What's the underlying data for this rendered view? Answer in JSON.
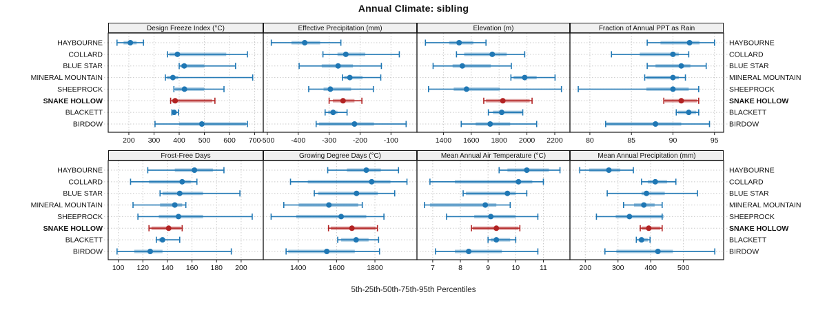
{
  "title": "Annual Climate: sibling",
  "footer": "5th-25th-50th-75th-95th Percentiles",
  "highlight_location": "SNAKE HOLLOW",
  "colors": {
    "series": "#1f77b4",
    "highlight": "#b22222",
    "strip_bg": "#f0f0f0",
    "grid": "#c9c9c9",
    "border": "#1a1a1a",
    "text": "#111111"
  },
  "locations": [
    "HAYBOURNE",
    "COLLARD",
    "BLUE STAR",
    "MINERAL MOUNTAIN",
    "SHEEPROCK",
    "SNAKE HOLLOW",
    "BLACKETT",
    "BIRDOW"
  ],
  "chart_data": {
    "type": "dot-interval",
    "title": "Annual Climate: sibling",
    "xlabel": "5th-25th-50th-75th-95th Percentiles",
    "legend_position": "none",
    "grid": "dotted",
    "percentile_levels": [
      5,
      25,
      50,
      75,
      95
    ],
    "categories": [
      "HAYBOURNE",
      "COLLARD",
      "BLUE STAR",
      "MINERAL MOUNTAIN",
      "SHEEPROCK",
      "SNAKE HOLLOW",
      "BLACKETT",
      "BIRDOW"
    ],
    "panels": [
      {
        "title": "Design Freeze Index (°C)",
        "xlim": [
          118,
          734
        ],
        "ticks": [
          200,
          300,
          400,
          500,
          600,
          700
        ],
        "series": [
          [
            153,
            179,
            206,
            231,
            258
          ],
          [
            354,
            361,
            393,
            587,
            671
          ],
          [
            400,
            406,
            420,
            500,
            624
          ],
          [
            345,
            352,
            375,
            396,
            692
          ],
          [
            379,
            384,
            421,
            500,
            578
          ],
          [
            366,
            371,
            384,
            531,
            542
          ],
          [
            371,
            373,
            380,
            386,
            397
          ],
          [
            304,
            400,
            490,
            665,
            671
          ]
        ]
      },
      {
        "title": "Effective Precipitation (mm)",
        "xlim": [
          -513,
          -16
        ],
        "ticks": [
          -500,
          -400,
          -300,
          -200,
          -100
        ],
        "series": [
          [
            -487,
            -422,
            -379,
            -329,
            -262
          ],
          [
            -320,
            -273,
            -246,
            -183,
            -73
          ],
          [
            -397,
            -324,
            -271,
            -223,
            -131
          ],
          [
            -257,
            -251,
            -233,
            -192,
            -133
          ],
          [
            -366,
            -318,
            -296,
            -229,
            -157
          ],
          [
            -300,
            -288,
            -255,
            -218,
            -194
          ],
          [
            -313,
            -303,
            -287,
            -273,
            -242
          ],
          [
            -342,
            -333,
            -218,
            -155,
            -51
          ]
        ]
      },
      {
        "title": "Elevation (m)",
        "xlim": [
          1210,
          2309
        ],
        "ticks": [
          1400,
          1600,
          1800,
          2000,
          2200
        ],
        "series": [
          [
            1271,
            1442,
            1513,
            1615,
            1706
          ],
          [
            1494,
            1549,
            1751,
            1855,
            1984
          ],
          [
            1326,
            1466,
            1536,
            1741,
            1888
          ],
          [
            1885,
            1904,
            1984,
            2070,
            2202
          ],
          [
            1293,
            1474,
            1566,
            1805,
            2248
          ],
          [
            1690,
            1706,
            1827,
            2020,
            2037
          ],
          [
            1723,
            1756,
            1819,
            1962,
            1970
          ],
          [
            1528,
            1632,
            1736,
            1880,
            2070
          ]
        ]
      },
      {
        "title": "Fraction of Annual PPT as Rain",
        "xlim": [
          77.6,
          96.1
        ],
        "ticks": [
          80,
          85,
          90,
          95
        ],
        "series": [
          [
            86.9,
            88.5,
            92.0,
            93.2,
            95.0
          ],
          [
            82.6,
            86.0,
            90.0,
            90.7,
            91.9
          ],
          [
            86.9,
            87.9,
            91.0,
            92.1,
            94.0
          ],
          [
            86.6,
            86.8,
            90.0,
            90.7,
            91.5
          ],
          [
            78.6,
            86.8,
            90.0,
            91.9,
            93.1
          ],
          [
            88.9,
            89.0,
            91.0,
            92.9,
            93.1
          ],
          [
            90.4,
            90.6,
            91.9,
            92.8,
            93.1
          ],
          [
            81.9,
            82.0,
            87.9,
            91.0,
            94.4
          ]
        ]
      },
      {
        "title": "Frost-Free Days",
        "xlim": [
          91.8,
          218
        ],
        "ticks": [
          100,
          120,
          140,
          160,
          180,
          200
        ],
        "series": [
          [
            124,
            146,
            162,
            177,
            186
          ],
          [
            110,
            125,
            152,
            159,
            164
          ],
          [
            134,
            136,
            150,
            169,
            199
          ],
          [
            112,
            134,
            146,
            152,
            155
          ],
          [
            116,
            133,
            149,
            169,
            209
          ],
          [
            125,
            127,
            141,
            151,
            152
          ],
          [
            131,
            133,
            136,
            138,
            150
          ],
          [
            99,
            113,
            126,
            136,
            192
          ]
        ]
      },
      {
        "title": "Growing Degree Days (°C)",
        "xlim": [
          1218,
          2019
        ],
        "ticks": [
          1400,
          1600,
          1800
        ],
        "series": [
          [
            1554,
            1654,
            1755,
            1831,
            1923
          ],
          [
            1360,
            1450,
            1783,
            1881,
            1967
          ],
          [
            1484,
            1504,
            1704,
            1815,
            1903
          ],
          [
            1325,
            1402,
            1560,
            1713,
            1734
          ],
          [
            1259,
            1390,
            1624,
            1755,
            1847
          ],
          [
            1558,
            1570,
            1680,
            1803,
            1813
          ],
          [
            1606,
            1624,
            1702,
            1767,
            1819
          ],
          [
            1337,
            1348,
            1549,
            1695,
            1824
          ]
        ]
      },
      {
        "title": "Mean Annual Air Temperature (°C)",
        "xlim": [
          6.43,
          11.96
        ],
        "ticks": [
          7,
          8,
          9,
          10,
          11
        ],
        "series": [
          [
            9.4,
            9.7,
            10.4,
            11.2,
            11.6
          ],
          [
            6.9,
            7.8,
            10.1,
            10.6,
            11.0
          ],
          [
            8.1,
            8.2,
            9.7,
            10.0,
            10.4
          ],
          [
            6.7,
            6.9,
            8.9,
            9.3,
            9.8
          ],
          [
            7.5,
            8.5,
            9.1,
            10.0,
            10.8
          ],
          [
            8.4,
            8.45,
            9.3,
            10.1,
            10.15
          ],
          [
            9.0,
            9.1,
            9.3,
            9.8,
            10.0
          ],
          [
            7.1,
            7.8,
            8.3,
            9.5,
            10.8
          ]
        ]
      },
      {
        "title": "Mean Annual Precipitation (mm)",
        "xlim": [
          153,
          623
        ],
        "ticks": [
          200,
          300,
          400,
          500
        ],
        "series": [
          [
            183,
            212,
            272,
            307,
            347
          ],
          [
            372,
            391,
            414,
            450,
            477
          ],
          [
            267,
            372,
            387,
            443,
            543
          ],
          [
            317,
            349,
            379,
            412,
            435
          ],
          [
            234,
            293,
            335,
            440,
            435
          ],
          [
            368,
            372,
            394,
            429,
            435
          ],
          [
            356,
            363,
            372,
            391,
            398
          ],
          [
            260,
            295,
            422,
            468,
            596
          ]
        ]
      }
    ]
  }
}
